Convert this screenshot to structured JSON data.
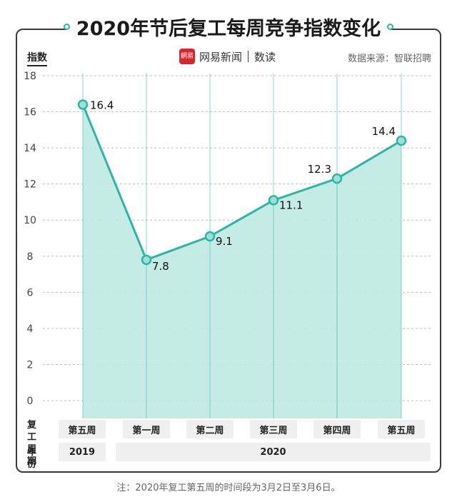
{
  "title": "2020年节后复工每周竞争指数变化",
  "brand": {
    "logo_text": "網易",
    "name": "网易新闻",
    "sub": "数读"
  },
  "source": "数据来源：智联招聘",
  "table": {
    "row1_header_line1": "复工",
    "row1_header_line2": "周期",
    "row2_header": "年份",
    "years": [
      "2019",
      "2020"
    ]
  },
  "note": "注：2020年复工第五周的时间段为3月2日至3月6日。",
  "chart_data": {
    "type": "area",
    "title": "2020年节后复工每周竞争指数变化",
    "ylabel": "指数",
    "xlabel": "",
    "categories": [
      "第五周",
      "第一周",
      "第二周",
      "第三周",
      "第四周",
      "第五周"
    ],
    "values": [
      16.4,
      7.8,
      9.1,
      11.1,
      12.3,
      14.4
    ],
    "value_labels": [
      "16.4",
      "7.8",
      "9.1",
      "11.1",
      "12.3",
      "14.4"
    ],
    "ylim": [
      0,
      18
    ],
    "yticks": [
      0,
      2,
      4,
      6,
      8,
      10,
      12,
      14,
      16,
      18
    ],
    "ytick_labels": [
      "0",
      "2",
      "4",
      "6",
      "8",
      "10",
      "12",
      "14",
      "16",
      "18"
    ],
    "grid": true,
    "colors": {
      "line": "#2fb5a3",
      "fill": "#bfe9e2",
      "marker_fill": "#9fe0d6"
    }
  }
}
